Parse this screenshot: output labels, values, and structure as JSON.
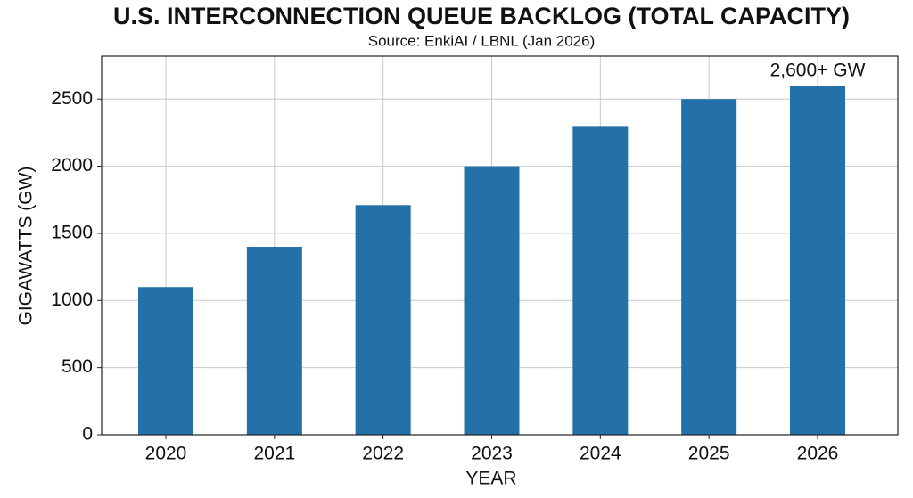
{
  "chart_data": {
    "type": "bar",
    "title": "U.S. INTERCONNECTION QUEUE BACKLOG (TOTAL CAPACITY)",
    "subtitle": "Source: EnkiAI / LBNL (Jan 2026)",
    "x_label": "YEAR",
    "y_label": "GIGAWATTS (GW)",
    "categories": [
      "2020",
      "2021",
      "2022",
      "2023",
      "2024",
      "2025",
      "2026"
    ],
    "values": [
      1100,
      1400,
      1710,
      2000,
      2300,
      2500,
      2600
    ],
    "value_labels": [
      null,
      null,
      null,
      null,
      null,
      null,
      "2,600+ GW"
    ],
    "color": "#2471aa",
    "ylim": [
      0,
      2820
    ],
    "yticks": [
      0,
      500,
      1000,
      1500,
      2000,
      2500
    ],
    "grid": true
  }
}
